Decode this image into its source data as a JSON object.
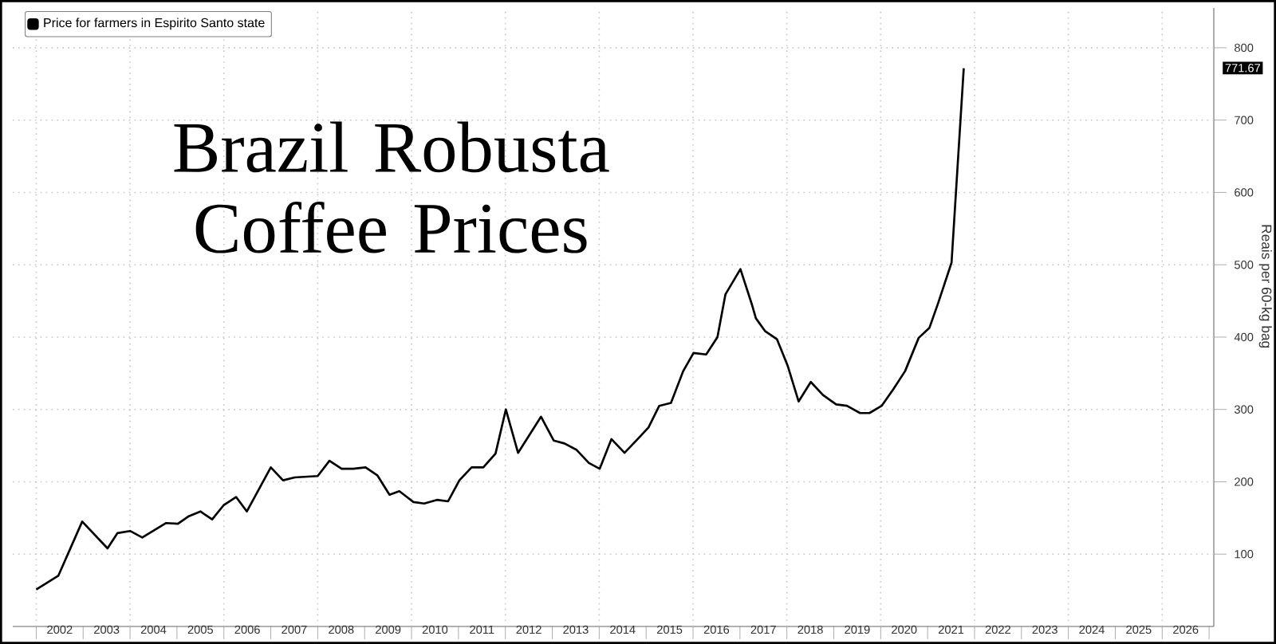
{
  "chart_data": {
    "type": "line",
    "title": "Brazil Robusta Coffee Prices",
    "ylabel": "Reais per 60-kg bag",
    "x": [
      2002.0,
      2002.47,
      2002.98,
      2003.52,
      2003.73,
      2004.0,
      2004.26,
      2004.77,
      2005.02,
      2005.24,
      2005.5,
      2005.75,
      2006.0,
      2006.26,
      2006.49,
      2007.0,
      2007.26,
      2007.51,
      2008.0,
      2008.25,
      2008.51,
      2008.76,
      2009.02,
      2009.27,
      2009.53,
      2009.74,
      2010.04,
      2010.27,
      2010.54,
      2010.78,
      2011.02,
      2011.28,
      2011.53,
      2011.79,
      2012.01,
      2012.27,
      2012.76,
      2013.03,
      2013.26,
      2013.52,
      2013.78,
      2014.01,
      2014.26,
      2014.54,
      2014.82,
      2015.05,
      2015.28,
      2015.53,
      2015.79,
      2016.01,
      2016.28,
      2016.52,
      2016.69,
      2017.01,
      2017.26,
      2017.34,
      2017.54,
      2017.79,
      2018.02,
      2018.25,
      2018.51,
      2018.77,
      2019.05,
      2019.28,
      2019.56,
      2019.76,
      2020.02,
      2020.27,
      2020.52,
      2020.81,
      2021.04,
      2021.23,
      2021.51,
      2021.77
    ],
    "series": [
      {
        "name": "Price for farmers in Espirito Santo state",
        "color": "#000000",
        "values": [
          51,
          70,
          145,
          108,
          129,
          132,
          123,
          143,
          142,
          152,
          159,
          148,
          168,
          179,
          159,
          220,
          202,
          206,
          208,
          229,
          218,
          218,
          220,
          209,
          182,
          187,
          172,
          170,
          175,
          173,
          202,
          220,
          220,
          239,
          300,
          240,
          290,
          257,
          253,
          244,
          226,
          218,
          259,
          240,
          259,
          275,
          305,
          309,
          353,
          378,
          376,
          400,
          459,
          494,
          444,
          426,
          408,
          397,
          360,
          311,
          338,
          320,
          307,
          305,
          295,
          295,
          305,
          328,
          353,
          399,
          413,
          448,
          503,
          771.67
        ]
      }
    ],
    "xlim": [
      2001.5,
      2027.1
    ],
    "xticks": [
      {
        "value": 2002,
        "label": null
      },
      {
        "value": 2002.5,
        "label": "2002"
      },
      {
        "value": 2003,
        "label": null
      },
      {
        "value": 2003.5,
        "label": "2003"
      },
      {
        "value": 2004,
        "label": null
      },
      {
        "value": 2004.5,
        "label": "2004"
      },
      {
        "value": 2005,
        "label": null
      },
      {
        "value": 2005.5,
        "label": "2005"
      },
      {
        "value": 2006,
        "label": null
      },
      {
        "value": 2006.5,
        "label": "2006"
      },
      {
        "value": 2007,
        "label": null
      },
      {
        "value": 2007.5,
        "label": "2007"
      },
      {
        "value": 2008,
        "label": null
      },
      {
        "value": 2008.5,
        "label": "2008"
      },
      {
        "value": 2009,
        "label": null
      },
      {
        "value": 2009.5,
        "label": "2009"
      },
      {
        "value": 2010,
        "label": null
      },
      {
        "value": 2010.5,
        "label": "2010"
      },
      {
        "value": 2011,
        "label": null
      },
      {
        "value": 2011.5,
        "label": "2011"
      },
      {
        "value": 2012,
        "label": null
      },
      {
        "value": 2012.5,
        "label": "2012"
      },
      {
        "value": 2013,
        "label": null
      },
      {
        "value": 2013.5,
        "label": "2013"
      },
      {
        "value": 2014,
        "label": null
      },
      {
        "value": 2014.5,
        "label": "2014"
      },
      {
        "value": 2015,
        "label": null
      },
      {
        "value": 2015.5,
        "label": "2015"
      },
      {
        "value": 2016,
        "label": null
      },
      {
        "value": 2016.5,
        "label": "2016"
      },
      {
        "value": 2017,
        "label": null
      },
      {
        "value": 2017.5,
        "label": "2017"
      },
      {
        "value": 2018,
        "label": null
      },
      {
        "value": 2018.5,
        "label": "2018"
      },
      {
        "value": 2019,
        "label": null
      },
      {
        "value": 2019.5,
        "label": "2019"
      },
      {
        "value": 2020,
        "label": null
      },
      {
        "value": 2020.5,
        "label": "2020"
      },
      {
        "value": 2021,
        "label": null
      },
      {
        "value": 2021.5,
        "label": "2021"
      },
      {
        "value": 2022,
        "label": null
      },
      {
        "value": 2022.5,
        "label": "2022"
      },
      {
        "value": 2023,
        "label": null
      },
      {
        "value": 2023.5,
        "label": "2023"
      },
      {
        "value": 2024,
        "label": null
      },
      {
        "value": 2024.5,
        "label": "2024"
      },
      {
        "value": 2025,
        "label": null
      },
      {
        "value": 2025.5,
        "label": "2025"
      },
      {
        "value": 2026,
        "label": null
      },
      {
        "value": 2026.5,
        "label": "2026"
      },
      {
        "value": 2027,
        "label": null
      }
    ],
    "ylim": [
      0,
      855
    ],
    "yticks": [
      100,
      200,
      300,
      400,
      500,
      600,
      700,
      800
    ],
    "annotations": [
      "771.67"
    ],
    "grid": true,
    "legend": "top left",
    "marker": "none",
    "line_style": "solid"
  }
}
